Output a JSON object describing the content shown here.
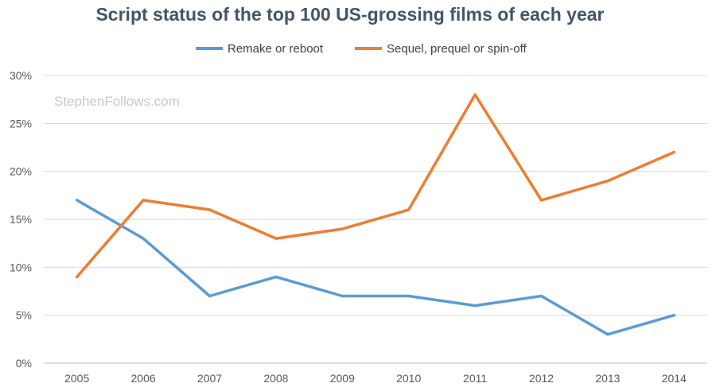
{
  "chart_data": {
    "type": "line",
    "title": "Script status of the top 100 US-grossing films of each year",
    "watermark": "StephenFollows.com",
    "categories": [
      "2005",
      "2006",
      "2007",
      "2008",
      "2009",
      "2010",
      "2011",
      "2012",
      "2013",
      "2014"
    ],
    "series": [
      {
        "name": "Remake or reboot",
        "color": "#5b9bd5",
        "values": [
          17,
          13,
          7,
          9,
          7,
          7,
          6,
          7,
          3,
          5
        ]
      },
      {
        "name": "Sequel, prequel or spin-off",
        "color": "#ed7d31",
        "values": [
          9,
          17,
          16,
          13,
          14,
          16,
          28,
          17,
          19,
          22
        ]
      }
    ],
    "ylim": [
      0,
      30
    ],
    "yticks": [
      0,
      5,
      10,
      15,
      20,
      25,
      30
    ],
    "ytick_labels": [
      "0%",
      "5%",
      "10%",
      "15%",
      "20%",
      "25%",
      "30%"
    ],
    "grid": true,
    "legend_position": "top-center",
    "xlabel": "",
    "ylabel": ""
  }
}
